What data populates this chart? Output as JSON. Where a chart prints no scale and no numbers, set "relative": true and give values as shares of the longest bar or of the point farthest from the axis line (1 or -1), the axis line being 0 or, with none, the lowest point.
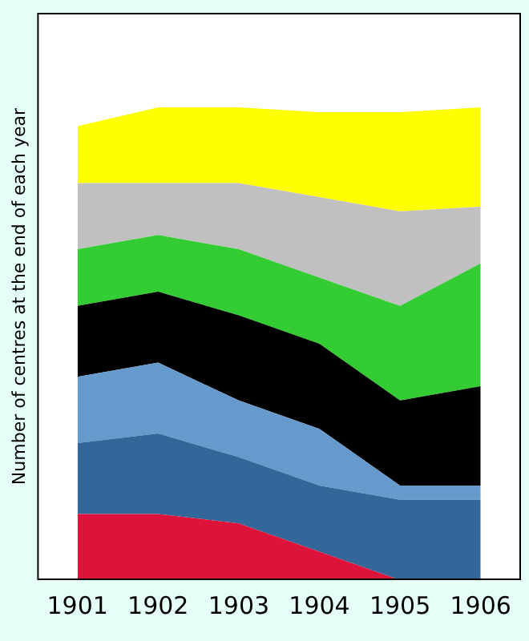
{
  "chart_data": {
    "type": "area",
    "stacked": true,
    "relative": true,
    "ylabel": "Number of centres at the end of each year",
    "categories": [
      "1901",
      "1902",
      "1903",
      "1904",
      "1905",
      "1906"
    ],
    "series": [
      {
        "color": "#dc143c",
        "values": [
          0.14,
          0.14,
          0.12,
          0.06,
          0,
          0
        ]
      },
      {
        "color": "#336699",
        "values": [
          0.15,
          0.17,
          0.14,
          0.14,
          0.17,
          0.17
        ]
      },
      {
        "color": "#6699cc",
        "values": [
          0.14,
          0.15,
          0.12,
          0.12,
          0.03,
          0.03
        ]
      },
      {
        "color": "#000000",
        "values": [
          0.15,
          0.15,
          0.18,
          0.18,
          0.18,
          0.21
        ]
      },
      {
        "color": "#33cc33",
        "values": [
          0.12,
          0.12,
          0.14,
          0.14,
          0.2,
          0.26
        ]
      },
      {
        "color": "#c0c0c0",
        "values": [
          0.14,
          0.11,
          0.14,
          0.17,
          0.2,
          0.12
        ]
      },
      {
        "color": "#ffff00",
        "values": [
          0.12,
          0.16,
          0.16,
          0.18,
          0.21,
          0.21
        ]
      }
    ],
    "grid": false,
    "legend": false
  }
}
